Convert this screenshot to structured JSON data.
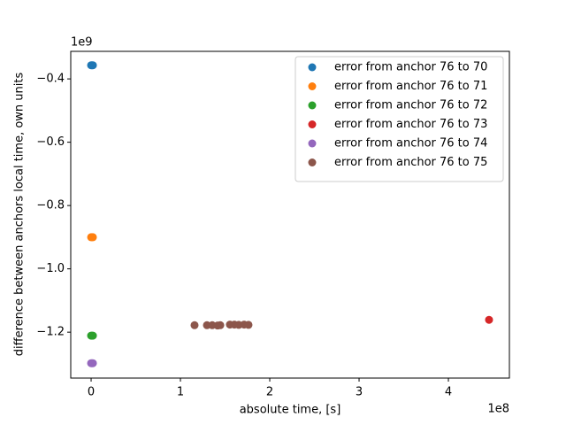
{
  "chart_data": {
    "type": "scatter",
    "xlabel": "absolute time, [s]",
    "ylabel": "difference between anchors local time, own units",
    "x_offset_label": "1e8",
    "y_offset_label": "1e9",
    "xlim": [
      -0.228,
      4.683
    ],
    "ylim": [
      -1.345,
      -0.313
    ],
    "xticks": [
      0,
      1,
      2,
      3,
      4
    ],
    "yticks": [
      {
        "value": -1.2,
        "label": "−1.2"
      },
      {
        "value": -1.0,
        "label": "−1.0"
      },
      {
        "value": -0.8,
        "label": "−0.8"
      },
      {
        "value": -0.6,
        "label": "−0.6"
      },
      {
        "value": -0.4,
        "label": "−0.4"
      }
    ],
    "legend": "upper right",
    "series": [
      {
        "name": "error from anchor 76 to 70",
        "color": "#1f77b4",
        "x": [
          0.0,
          0.01,
          0.02
        ],
        "values": [
          -0.357,
          -0.357,
          -0.357
        ]
      },
      {
        "name": "error from anchor 76 to 71",
        "color": "#ff7f0e",
        "x": [
          0.0,
          0.01,
          0.02
        ],
        "values": [
          -0.9,
          -0.9,
          -0.9
        ]
      },
      {
        "name": "error from anchor 76 to 72",
        "color": "#2ca02c",
        "x": [
          0.0,
          0.01,
          0.02
        ],
        "values": [
          -1.211,
          -1.211,
          -1.211
        ]
      },
      {
        "name": "error from anchor 76 to 73",
        "color": "#d62728",
        "x": [
          4.455
        ],
        "values": [
          -1.161
        ]
      },
      {
        "name": "error from anchor 76 to 74",
        "color": "#9467bd",
        "x": [
          0.0,
          0.01,
          0.02
        ],
        "values": [
          -1.298,
          -1.298,
          -1.298
        ]
      },
      {
        "name": "error from anchor 76 to 75",
        "color": "#8c564b",
        "x": [
          1.158,
          1.297,
          1.356,
          1.416,
          1.446,
          1.554,
          1.604,
          1.653,
          1.713,
          1.762
        ],
        "values": [
          -1.178,
          -1.178,
          -1.178,
          -1.179,
          -1.178,
          -1.176,
          -1.176,
          -1.177,
          -1.176,
          -1.177
        ]
      }
    ]
  }
}
